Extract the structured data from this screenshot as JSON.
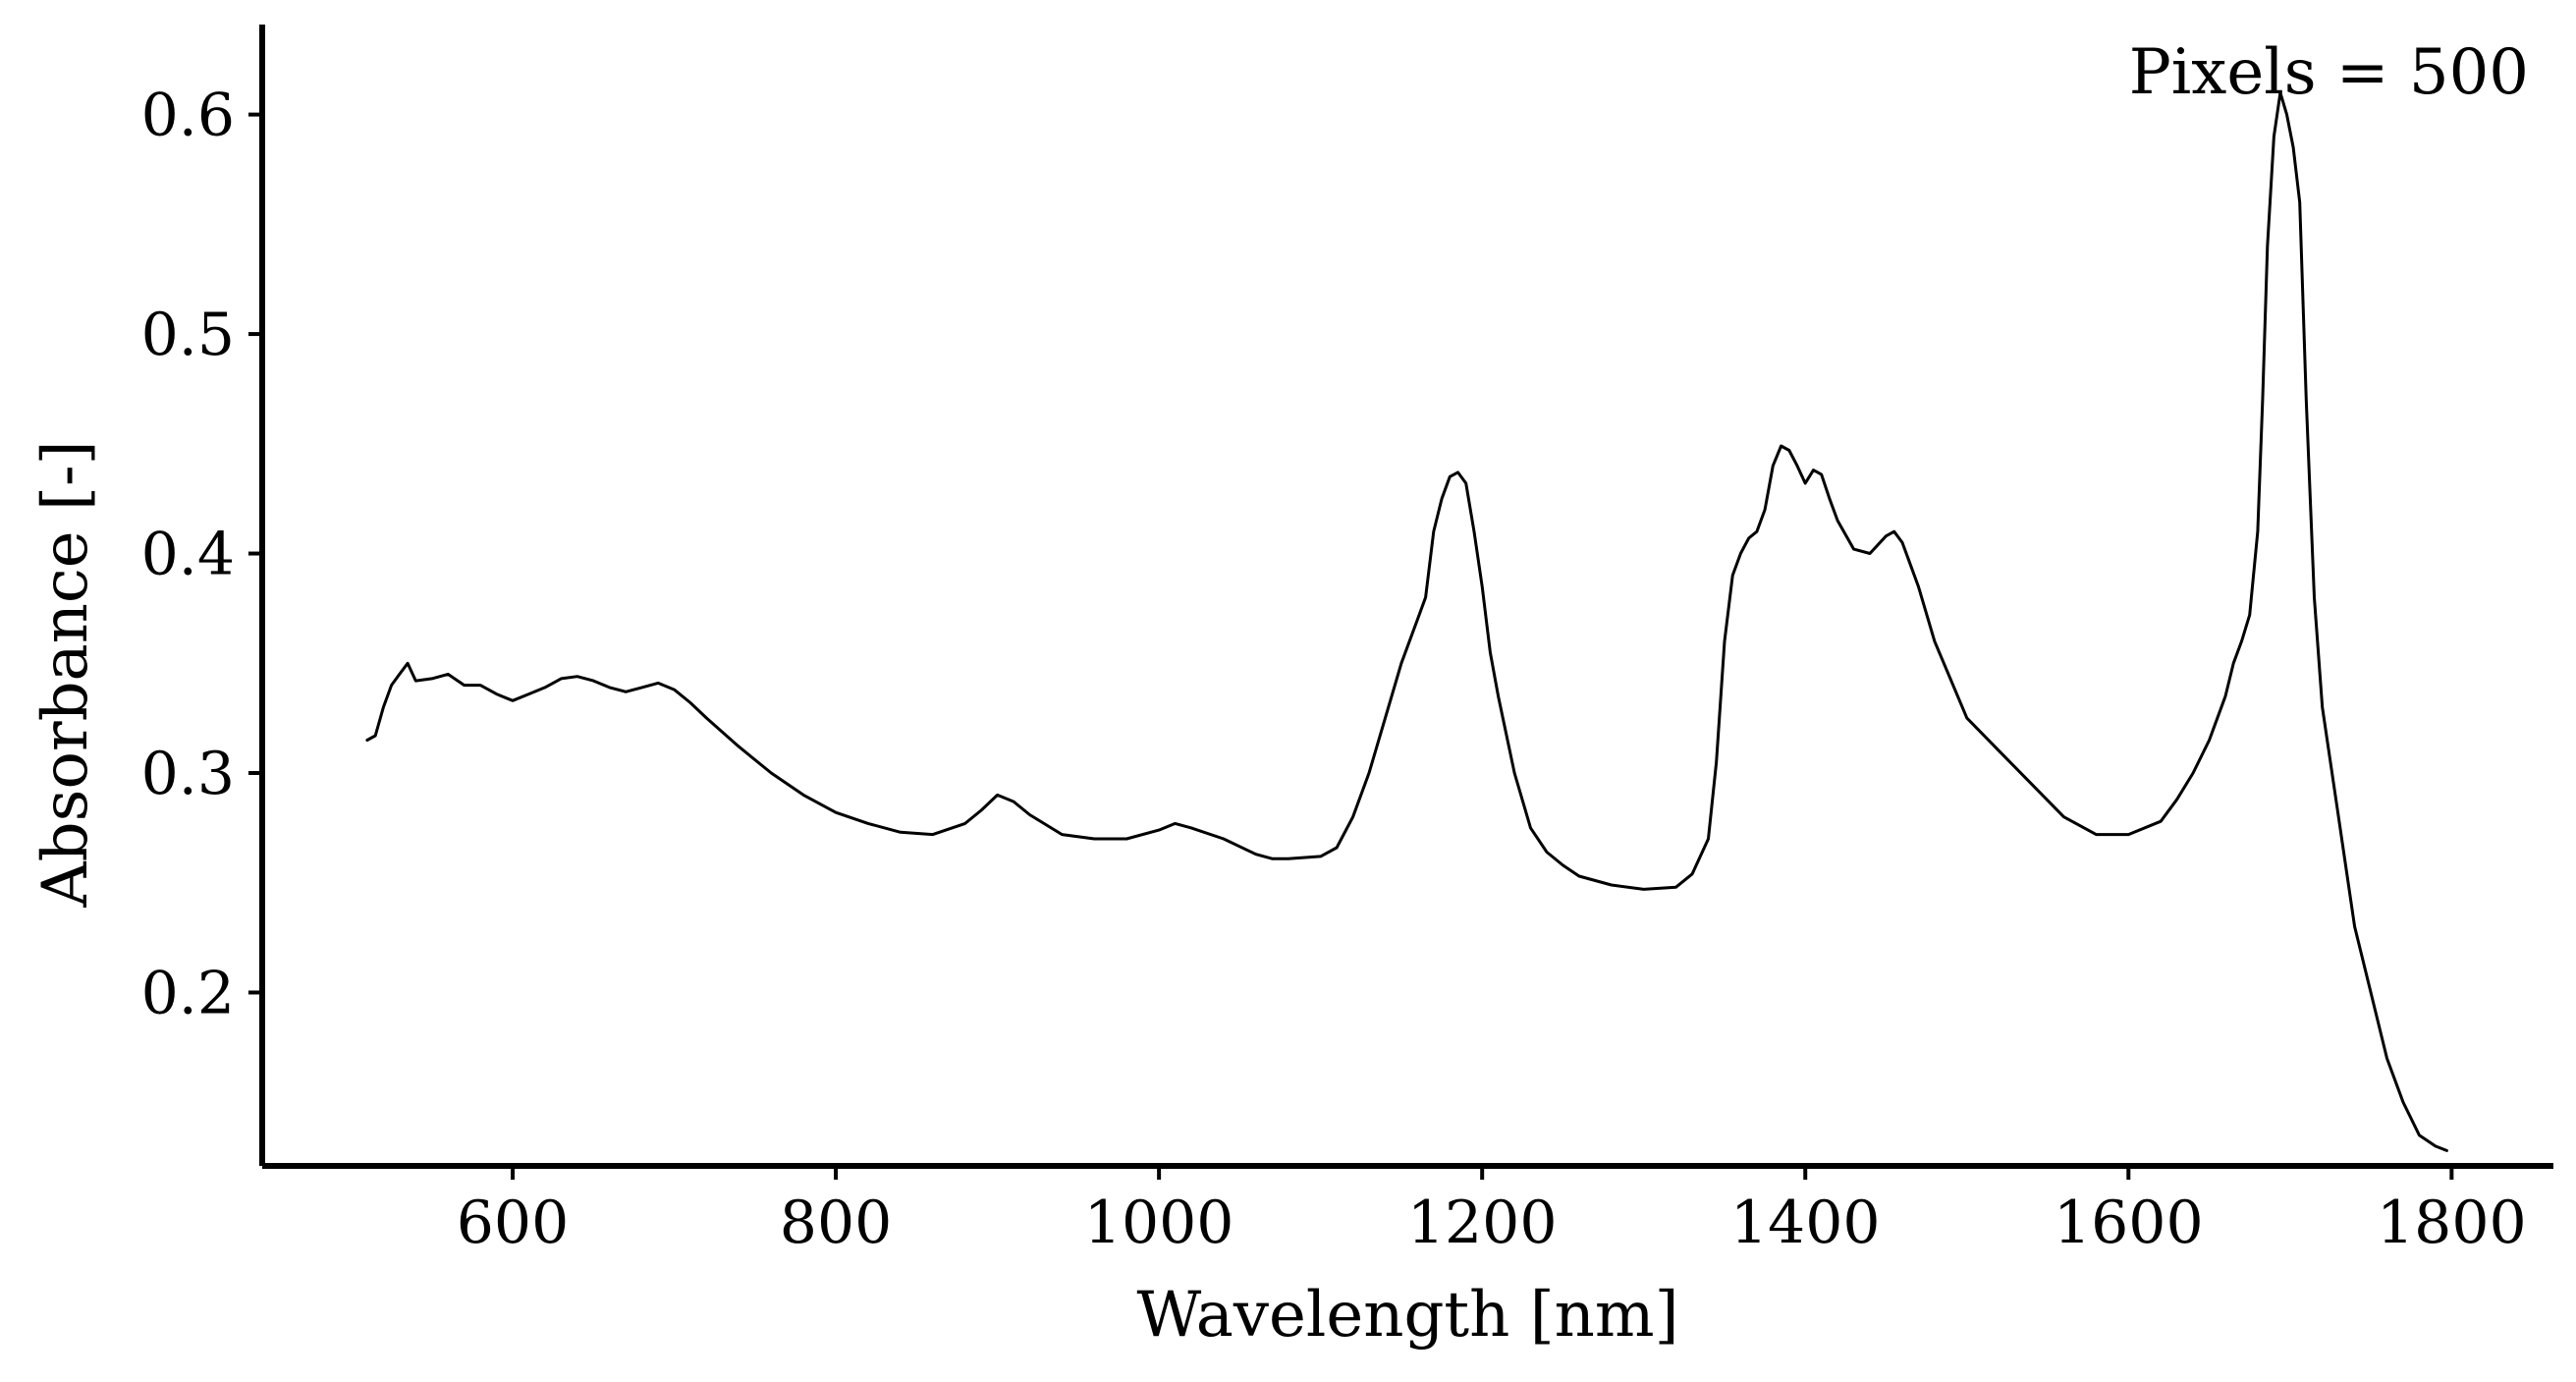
{
  "chart_data": {
    "type": "line",
    "annotation": "Pixels = 500",
    "xlabel": "Wavelength [nm]",
    "ylabel": "Absorbance [-]",
    "xlim": [
      445,
      1863
    ],
    "ylim": [
      0.121,
      0.641
    ],
    "x_ticks": [
      600,
      800,
      1000,
      1200,
      1400,
      1600,
      1800
    ],
    "y_ticks": [
      0.2,
      0.3,
      0.4,
      0.5,
      0.6
    ],
    "x_tick_labels": [
      "600",
      "800",
      "1000",
      "1200",
      "1400",
      "1600",
      "1800"
    ],
    "y_tick_labels": [
      "0.2",
      "0.3",
      "0.4",
      "0.5",
      "0.6"
    ],
    "grid": false,
    "colors": {
      "line": "#000000",
      "axes": "#000000",
      "background": "#ffffff"
    },
    "series": [
      {
        "x": [
          510,
          515,
          520,
          525,
          530,
          535,
          540,
          550,
          560,
          570,
          580,
          590,
          600,
          610,
          620,
          630,
          640,
          650,
          660,
          670,
          680,
          690,
          700,
          710,
          720,
          740,
          760,
          780,
          800,
          820,
          840,
          860,
          880,
          890,
          900,
          910,
          920,
          940,
          960,
          980,
          1000,
          1010,
          1020,
          1040,
          1060,
          1070,
          1080,
          1100,
          1110,
          1120,
          1130,
          1140,
          1150,
          1160,
          1165,
          1170,
          1175,
          1180,
          1185,
          1190,
          1195,
          1200,
          1205,
          1210,
          1220,
          1230,
          1240,
          1250,
          1260,
          1280,
          1300,
          1320,
          1330,
          1340,
          1345,
          1350,
          1355,
          1360,
          1365,
          1370,
          1375,
          1380,
          1385,
          1390,
          1395,
          1400,
          1405,
          1410,
          1415,
          1420,
          1430,
          1440,
          1450,
          1455,
          1460,
          1465,
          1470,
          1480,
          1500,
          1520,
          1540,
          1560,
          1580,
          1600,
          1620,
          1630,
          1640,
          1650,
          1660,
          1665,
          1670,
          1675,
          1680,
          1683,
          1686,
          1690,
          1694,
          1698,
          1702,
          1706,
          1710,
          1715,
          1720,
          1730,
          1740,
          1750,
          1760,
          1770,
          1780,
          1790,
          1797
        ],
        "y": [
          0.315,
          0.317,
          0.33,
          0.34,
          0.345,
          0.35,
          0.342,
          0.343,
          0.345,
          0.34,
          0.34,
          0.336,
          0.333,
          0.336,
          0.339,
          0.343,
          0.344,
          0.342,
          0.339,
          0.337,
          0.339,
          0.341,
          0.338,
          0.332,
          0.325,
          0.312,
          0.3,
          0.29,
          0.282,
          0.277,
          0.273,
          0.272,
          0.277,
          0.283,
          0.29,
          0.287,
          0.281,
          0.272,
          0.27,
          0.27,
          0.274,
          0.277,
          0.275,
          0.27,
          0.263,
          0.261,
          0.261,
          0.262,
          0.266,
          0.28,
          0.3,
          0.325,
          0.35,
          0.37,
          0.38,
          0.41,
          0.425,
          0.435,
          0.437,
          0.432,
          0.41,
          0.385,
          0.355,
          0.335,
          0.3,
          0.275,
          0.264,
          0.258,
          0.253,
          0.249,
          0.247,
          0.248,
          0.254,
          0.27,
          0.305,
          0.36,
          0.39,
          0.4,
          0.407,
          0.41,
          0.42,
          0.44,
          0.449,
          0.447,
          0.44,
          0.432,
          0.438,
          0.436,
          0.425,
          0.415,
          0.402,
          0.4,
          0.408,
          0.41,
          0.405,
          0.395,
          0.385,
          0.36,
          0.325,
          0.31,
          0.295,
          0.28,
          0.272,
          0.272,
          0.278,
          0.288,
          0.3,
          0.315,
          0.335,
          0.35,
          0.36,
          0.372,
          0.41,
          0.47,
          0.54,
          0.59,
          0.61,
          0.6,
          0.585,
          0.56,
          0.47,
          0.38,
          0.33,
          0.28,
          0.23,
          0.2,
          0.17,
          0.15,
          0.135,
          0.13,
          0.128
        ]
      }
    ]
  }
}
